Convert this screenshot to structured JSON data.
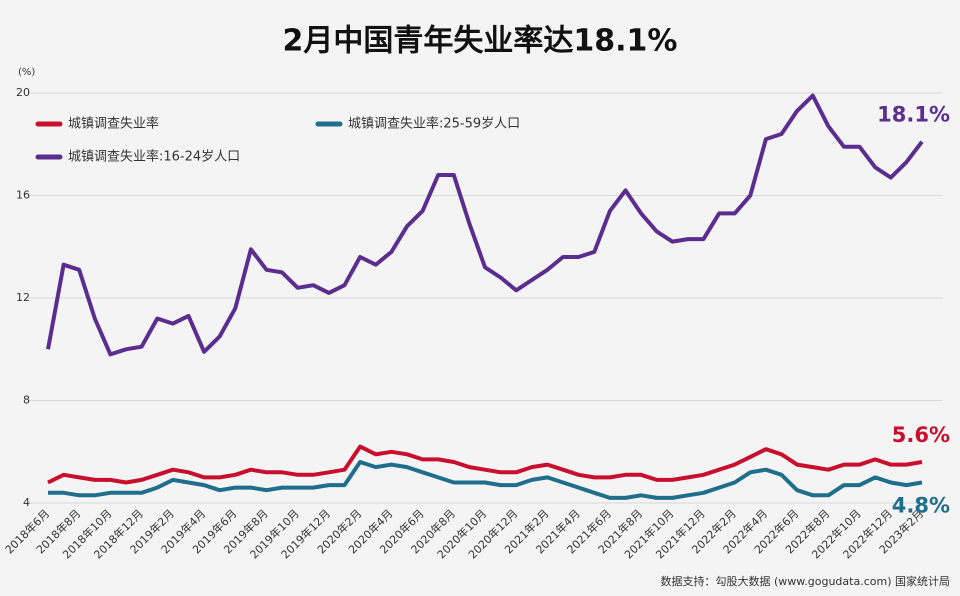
{
  "chart_data": {
    "type": "line",
    "title": "2月中国青年失业率达18.1%",
    "y_unit": "(%)",
    "source": "数据支持：勾股大数据 (www.gogudata.com) 国家统计局",
    "categories": [
      "2018年6月",
      null,
      "2018年8月",
      null,
      "2018年10月",
      null,
      "2018年12月",
      null,
      "2019年2月",
      null,
      "2019年4月",
      null,
      "2019年6月",
      null,
      "2019年8月",
      null,
      "2019年10月",
      null,
      "2019年12月",
      null,
      "2020年2月",
      null,
      "2020年4月",
      null,
      "2020年6月",
      null,
      "2020年8月",
      null,
      "2020年10月",
      null,
      "2020年12月",
      null,
      "2021年2月",
      null,
      "2021年4月",
      null,
      "2021年6月",
      null,
      "2021年8月",
      null,
      "2021年10月",
      null,
      "2021年12月",
      null,
      "2022年2月",
      null,
      "2022年4月",
      null,
      "2022年6月",
      null,
      "2022年8月",
      null,
      "2022年10月",
      null,
      "2022年12月",
      null,
      "2023年2月"
    ],
    "series": [
      {
        "name": "城镇调查失业率",
        "color": "#c8102e",
        "values": [
          4.8,
          5.1,
          5.0,
          4.9,
          4.9,
          4.8,
          4.9,
          5.1,
          5.3,
          5.2,
          5.0,
          5.0,
          5.1,
          5.3,
          5.2,
          5.2,
          5.1,
          5.1,
          5.2,
          5.3,
          6.2,
          5.9,
          6.0,
          5.9,
          5.7,
          5.7,
          5.6,
          5.4,
          5.3,
          5.2,
          5.2,
          5.4,
          5.5,
          5.3,
          5.1,
          5.0,
          5.0,
          5.1,
          5.1,
          4.9,
          4.9,
          5.0,
          5.1,
          5.3,
          5.5,
          5.8,
          6.1,
          5.9,
          5.5,
          5.4,
          5.3,
          5.5,
          5.5,
          5.7,
          5.5,
          5.5,
          5.6
        ],
        "value_labels": [
          null,
          null,
          null,
          null,
          null,
          null,
          null,
          null,
          null,
          null,
          null,
          null,
          null,
          null,
          null,
          null,
          null,
          null,
          null,
          null,
          null,
          null,
          null,
          null,
          null,
          null,
          null,
          null,
          null,
          null,
          null,
          null,
          null,
          null,
          null,
          null,
          null,
          null,
          null,
          null,
          null,
          null,
          null,
          null,
          null,
          null,
          null,
          null,
          null,
          null,
          null,
          null,
          null,
          null,
          null,
          null,
          "5.6%"
        ]
      },
      {
        "name": "城镇调查失业率:25-59岁人口",
        "color": "#1f6e8c",
        "values": [
          4.4,
          4.4,
          4.3,
          4.3,
          4.4,
          4.4,
          4.4,
          4.6,
          4.9,
          4.8,
          4.7,
          4.5,
          4.6,
          4.6,
          4.5,
          4.6,
          4.6,
          4.6,
          4.7,
          4.7,
          5.6,
          5.4,
          5.5,
          5.4,
          5.2,
          5.0,
          4.8,
          4.8,
          4.8,
          4.7,
          4.7,
          4.9,
          5.0,
          4.8,
          4.6,
          4.4,
          4.2,
          4.2,
          4.3,
          4.2,
          4.2,
          4.3,
          4.4,
          4.6,
          4.8,
          5.2,
          5.3,
          5.1,
          4.5,
          4.3,
          4.3,
          4.7,
          4.7,
          5.0,
          4.8,
          4.7,
          4.8
        ],
        "value_labels": [
          null,
          null,
          null,
          null,
          null,
          null,
          null,
          null,
          null,
          null,
          null,
          null,
          null,
          null,
          null,
          null,
          null,
          null,
          null,
          null,
          null,
          null,
          null,
          null,
          null,
          null,
          null,
          null,
          null,
          null,
          null,
          null,
          null,
          null,
          null,
          null,
          null,
          null,
          null,
          null,
          null,
          null,
          null,
          null,
          null,
          null,
          null,
          null,
          null,
          null,
          null,
          null,
          null,
          null,
          null,
          null,
          "4.8%"
        ]
      },
      {
        "name": "城镇调查失业率:16-24岁人口",
        "color": "#5b2d8e",
        "values": [
          10.0,
          13.3,
          13.1,
          11.2,
          9.8,
          10.0,
          10.1,
          11.2,
          11.0,
          11.3,
          9.9,
          10.5,
          11.6,
          13.9,
          13.1,
          13.0,
          12.4,
          12.5,
          12.2,
          12.5,
          13.6,
          13.3,
          13.8,
          14.8,
          15.4,
          16.8,
          16.8,
          14.9,
          13.2,
          12.8,
          12.3,
          12.7,
          13.1,
          13.6,
          13.6,
          13.8,
          15.4,
          16.2,
          15.3,
          14.6,
          14.2,
          14.3,
          14.3,
          15.3,
          15.3,
          16.0,
          18.2,
          18.4,
          19.3,
          19.9,
          18.7,
          17.9,
          17.9,
          17.1,
          16.7,
          17.3,
          18.1
        ],
        "value_labels": [
          null,
          null,
          null,
          null,
          null,
          null,
          null,
          null,
          null,
          null,
          null,
          null,
          null,
          null,
          null,
          null,
          null,
          null,
          null,
          null,
          null,
          null,
          null,
          null,
          null,
          null,
          null,
          null,
          null,
          null,
          null,
          null,
          null,
          null,
          null,
          null,
          null,
          null,
          null,
          null,
          null,
          null,
          null,
          null,
          null,
          null,
          null,
          null,
          null,
          null,
          null,
          null,
          null,
          null,
          null,
          null,
          "18.1%"
        ]
      }
    ],
    "ylim": [
      4,
      20
    ],
    "yticks": [
      4,
      8,
      12,
      16,
      20
    ],
    "grid": true
  }
}
